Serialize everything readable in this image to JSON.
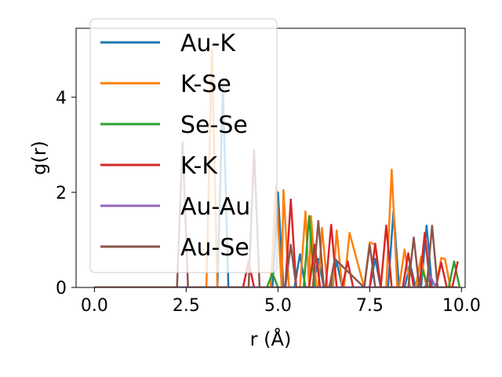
{
  "chart_data": {
    "type": "line",
    "xlabel": "r (Å)",
    "ylabel": "g(r)",
    "xlim": [
      -0.5,
      10.1
    ],
    "ylim": [
      0,
      5.45
    ],
    "xticks": [
      0.0,
      2.5,
      5.0,
      7.5,
      10.0
    ],
    "xtick_labels": [
      "0.0",
      "2.5",
      "5.0",
      "7.5",
      "10.0"
    ],
    "yticks": [
      0,
      2,
      4
    ],
    "ytick_labels": [
      "0",
      "2",
      "4"
    ],
    "grid": false,
    "legend_position": "upper-left",
    "series": [
      {
        "name": "Au-K",
        "color": "#1f77b4",
        "x": [
          0.0,
          3.35,
          3.5,
          3.65,
          4.85,
          5.0,
          5.15,
          5.45,
          5.6,
          5.75,
          5.95,
          6.1,
          6.25,
          6.45,
          6.6,
          6.75,
          7.5,
          7.65,
          7.8,
          8.0,
          8.15,
          8.3,
          8.45,
          8.6,
          8.75,
          8.9,
          9.05,
          9.2,
          9.35,
          9.5,
          9.9
        ],
        "y": [
          0.0,
          0.0,
          4.2,
          0.0,
          0.0,
          2.0,
          0.0,
          0.0,
          0.7,
          0.0,
          0.0,
          0.6,
          0.0,
          0.0,
          0.55,
          0.0,
          0.0,
          0.6,
          0.0,
          0.0,
          1.62,
          0.0,
          0.0,
          0.5,
          0.0,
          0.0,
          1.3,
          0.0,
          0.0,
          0.0,
          0.0
        ]
      },
      {
        "name": "K-Se",
        "color": "#ff7f0e",
        "x": [
          0.0,
          3.05,
          3.2,
          3.35,
          3.4,
          3.55,
          4.8,
          4.95,
          5.1,
          5.15,
          5.3,
          5.6,
          5.75,
          5.85,
          5.9,
          6.05,
          6.1,
          6.2,
          6.35,
          6.5,
          6.6,
          6.75,
          6.8,
          6.95,
          7.35,
          7.5,
          7.65,
          7.8,
          7.95,
          8.1,
          8.25,
          8.3,
          8.45,
          8.6,
          8.75,
          8.9,
          9.05,
          9.3,
          9.45,
          9.55,
          9.7,
          9.85
        ],
        "y": [
          0.0,
          0.0,
          5.0,
          0.0,
          0.0,
          0.0,
          0.0,
          2.15,
          0.0,
          2.05,
          0.0,
          0.0,
          1.6,
          0.0,
          1.5,
          0.0,
          0.0,
          1.25,
          0.0,
          0.0,
          1.2,
          0.0,
          0.0,
          1.15,
          0.0,
          0.95,
          0.9,
          0.0,
          0.0,
          2.48,
          0.0,
          0.0,
          0.8,
          0.0,
          0.0,
          0.65,
          0.0,
          0.0,
          0.62,
          0.6,
          0.0,
          0.0
        ]
      },
      {
        "name": "Se-Se",
        "color": "#2ca02c",
        "x": [
          0.0,
          4.7,
          4.85,
          5.0,
          5.7,
          5.85,
          6.0,
          8.8,
          8.95,
          9.1,
          9.65,
          9.8,
          9.95
        ],
        "y": [
          0.0,
          0.0,
          0.3,
          0.0,
          0.0,
          1.5,
          0.0,
          0.0,
          0.35,
          0.0,
          0.0,
          0.55,
          0.0
        ]
      },
      {
        "name": "K-K",
        "color": "#d62728",
        "x": [
          0.0,
          4.05,
          4.2,
          4.35,
          5.2,
          5.35,
          5.5,
          5.85,
          6.0,
          6.15,
          6.3,
          6.45,
          6.6,
          6.75,
          6.9,
          7.05,
          7.5,
          7.65,
          7.8,
          7.95,
          8.1,
          8.4,
          8.55,
          8.7,
          8.85,
          9.0,
          9.15,
          9.3,
          9.45,
          9.6,
          9.75,
          9.9
        ],
        "y": [
          0.0,
          0.0,
          0.55,
          0.0,
          0.0,
          1.85,
          0.0,
          0.0,
          0.9,
          0.0,
          0.0,
          1.32,
          0.0,
          0.0,
          0.55,
          0.0,
          0.0,
          0.92,
          0.0,
          1.3,
          0.0,
          0.0,
          0.72,
          0.0,
          0.0,
          1.15,
          0.0,
          0.0,
          0.52,
          0.0,
          0.0,
          0.55
        ]
      },
      {
        "name": "Au-Au",
        "color": "#9467bd",
        "x": [
          0.0,
          9.0,
          9.15,
          9.3,
          9.9
        ],
        "y": [
          0.0,
          0.0,
          0.25,
          0.0,
          0.0
        ]
      },
      {
        "name": "Au-Se",
        "color": "#8c564b",
        "x": [
          0.0,
          2.25,
          2.4,
          2.55,
          4.2,
          4.35,
          4.5,
          5.2,
          5.35,
          5.5,
          5.95,
          6.1,
          6.25,
          6.4,
          6.55,
          7.35,
          7.5,
          7.65,
          8.55,
          8.7,
          8.85,
          9.05,
          9.2,
          9.35,
          9.9
        ],
        "y": [
          0.0,
          0.0,
          3.05,
          0.0,
          0.0,
          2.9,
          0.0,
          0.0,
          0.9,
          0.0,
          0.0,
          1.4,
          0.0,
          0.0,
          0.6,
          0.0,
          0.9,
          0.0,
          0.0,
          1.05,
          0.0,
          0.0,
          1.3,
          0.0,
          0.0
        ]
      }
    ]
  }
}
